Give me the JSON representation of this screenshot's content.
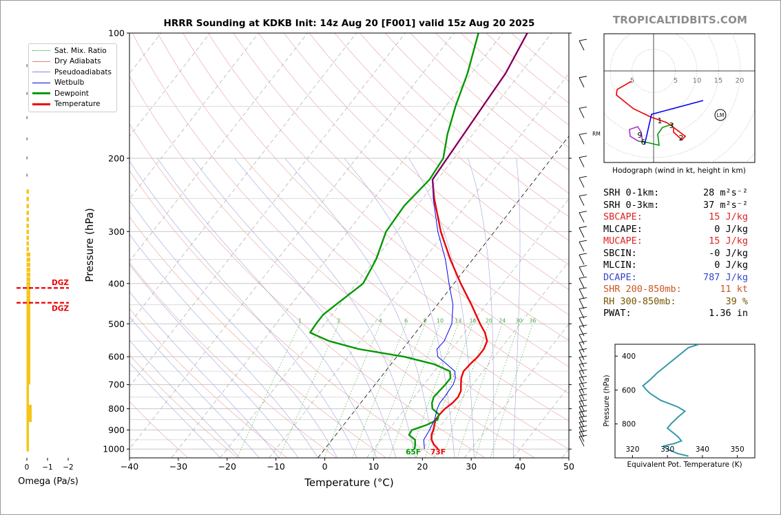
{
  "brand": "TROPICALTIDBITS.COM",
  "chart_data": [
    {
      "type": "line",
      "title": "HRRR Sounding at KDKB Init: 14z Aug 20 [F001] valid 15z Aug 20 2025",
      "xlabel": "Temperature (°C)",
      "ylabel": "Pressure (hPa)",
      "xlim": [
        -40,
        50
      ],
      "ylim": [
        1050,
        100
      ],
      "y_scale": "log",
      "x_ticks": [
        -40,
        -30,
        -20,
        -10,
        0,
        10,
        20,
        30,
        40,
        50
      ],
      "x_tick_labels": [
        "−40",
        "−30",
        "−20",
        "−10",
        "0",
        "10",
        "20",
        "30",
        "40",
        "50"
      ],
      "y_ticks": [
        100,
        200,
        300,
        400,
        500,
        600,
        700,
        800,
        900,
        1000
      ],
      "legend": {
        "position": "top-left",
        "entries": [
          {
            "label": "Sat. Mix. Ratio",
            "color": "#2ca02c",
            "style": "dotted"
          },
          {
            "label": "Dry Adiabats",
            "color": "#e08080",
            "style": "solid"
          },
          {
            "label": "Pseudoadiabats",
            "color": "#8888cc",
            "style": "solid"
          },
          {
            "label": "Wetbulb",
            "color": "#0000ee",
            "style": "solid"
          },
          {
            "label": "Dewpoint",
            "color": "#009900",
            "style": "solid"
          },
          {
            "label": "Temperature",
            "color": "#ee0000",
            "style": "solid"
          }
        ]
      },
      "mixing_ratio_labels": [
        "1",
        "2",
        "4",
        "6",
        "8",
        "10",
        "13",
        "16",
        "20",
        "24",
        "30",
        "36"
      ],
      "surface_labels": {
        "dewpoint": "65F",
        "temperature": "73F"
      },
      "series": [
        {
          "name": "Temperature",
          "color": "#ee0000",
          "points": [
            [
              1000,
              23.2
            ],
            [
              975,
              21.6
            ],
            [
              950,
              20.4
            ],
            [
              925,
              19.6
            ],
            [
              900,
              19.2
            ],
            [
              875,
              18.6
            ],
            [
              850,
              18.0
            ],
            [
              825,
              18.0
            ],
            [
              800,
              18.2
            ],
            [
              775,
              18.8
            ],
            [
              750,
              19.0
            ],
            [
              725,
              18.6
            ],
            [
              700,
              17.6
            ],
            [
              675,
              16.6
            ],
            [
              650,
              16.0
            ],
            [
              625,
              16.2
            ],
            [
              600,
              16.6
            ],
            [
              575,
              16.6
            ],
            [
              550,
              16.0
            ],
            [
              525,
              14.2
            ],
            [
              500,
              11.8
            ],
            [
              450,
              7.0
            ],
            [
              400,
              1.4
            ],
            [
              350,
              -4.6
            ],
            [
              300,
              -11.0
            ],
            [
              250,
              -17.6
            ],
            [
              225,
              -21.0
            ],
            [
              200,
              -21.4
            ],
            [
              150,
              -22.4
            ],
            [
              125,
              -23.0
            ],
            [
              100,
              -25.0
            ]
          ]
        },
        {
          "name": "Dewpoint",
          "color": "#009900",
          "points": [
            [
              1000,
              18.4
            ],
            [
              975,
              17.8
            ],
            [
              950,
              17.0
            ],
            [
              925,
              15.0
            ],
            [
              900,
              14.8
            ],
            [
              875,
              17.0
            ],
            [
              850,
              18.4
            ],
            [
              825,
              17.8
            ],
            [
              800,
              15.6
            ],
            [
              775,
              14.6
            ],
            [
              750,
              14.0
            ],
            [
              725,
              14.2
            ],
            [
              700,
              14.4
            ],
            [
              675,
              14.4
            ],
            [
              650,
              13.2
            ],
            [
              625,
              8.8
            ],
            [
              600,
              1.6
            ],
            [
              575,
              -9.0
            ],
            [
              550,
              -16.4
            ],
            [
              525,
              -21.6
            ],
            [
              500,
              -21.8
            ],
            [
              475,
              -21.8
            ],
            [
              450,
              -20.8
            ],
            [
              400,
              -18.6
            ],
            [
              350,
              -19.8
            ],
            [
              300,
              -22.2
            ],
            [
              260,
              -22.6
            ],
            [
              225,
              -21.6
            ],
            [
              200,
              -22.2
            ],
            [
              175,
              -25.2
            ],
            [
              150,
              -28.0
            ],
            [
              125,
              -30.8
            ],
            [
              100,
              -35.0
            ]
          ]
        },
        {
          "name": "Wetbulb",
          "color": "#0000ee",
          "points": [
            [
              1000,
              20.4
            ],
            [
              950,
              18.8
            ],
            [
              925,
              18.6
            ],
            [
              900,
              18.4
            ],
            [
              850,
              17.8
            ],
            [
              800,
              16.6
            ],
            [
              775,
              16.2
            ],
            [
              750,
              16.2
            ],
            [
              700,
              16.0
            ],
            [
              675,
              15.4
            ],
            [
              650,
              14.2
            ],
            [
              625,
              11.4
            ],
            [
              600,
              8.4
            ],
            [
              575,
              7.0
            ],
            [
              550,
              7.2
            ],
            [
              500,
              6.0
            ],
            [
              450,
              3.2
            ],
            [
              400,
              -1.0
            ],
            [
              350,
              -5.6
            ],
            [
              300,
              -11.6
            ],
            [
              250,
              -17.8
            ],
            [
              225,
              -21.0
            ],
            [
              200,
              -21.4
            ],
            [
              150,
              -22.4
            ],
            [
              125,
              -23.0
            ],
            [
              100,
              -25.0
            ]
          ]
        }
      ],
      "dgz_labels": [
        "DGZ",
        "DGZ"
      ],
      "wind_barbs_panel": "right"
    },
    {
      "type": "bar",
      "orientation": "horizontal",
      "xlabel": "Omega (Pa/s)",
      "x_tick_labels": [
        "0",
        "−1",
        "−2"
      ],
      "note_values": "small bars along pressure levels, mostly near 0"
    },
    {
      "type": "line",
      "title": "Hodograph (wind in kt, height in km)",
      "ring_labels": [
        "5",
        "5",
        "10",
        "15",
        "20"
      ],
      "height_labels": [
        "1",
        "3",
        "2",
        "9",
        "6"
      ],
      "markers": [
        "LM",
        "RM"
      ]
    },
    {
      "type": "line",
      "xlabel": "Equivalent Pot. Temperature (K)",
      "ylabel": "Pressure (hPa)",
      "x_ticks": [
        320,
        330,
        340,
        350
      ],
      "y_ticks": [
        400,
        600,
        800
      ],
      "xlim": [
        315,
        355
      ],
      "ylim": [
        1000,
        330
      ],
      "series": [
        {
          "name": "theta_e",
          "color": "#3399aa",
          "points": [
            [
              990,
              336.0
            ],
            [
              975,
              333.0
            ],
            [
              950,
              330.0
            ],
            [
              930,
              329.0
            ],
            [
              915,
              332.0
            ],
            [
              900,
              334.0
            ],
            [
              875,
              333.0
            ],
            [
              825,
              330.0
            ],
            [
              800,
              331.0
            ],
            [
              760,
              333.0
            ],
            [
              725,
              335.0
            ],
            [
              700,
              333.0
            ],
            [
              660,
              328.0
            ],
            [
              620,
              325.0
            ],
            [
              600,
              324.0
            ],
            [
              575,
              323.0
            ],
            [
              540,
              325.0
            ],
            [
              500,
              327.0
            ],
            [
              450,
              330.0
            ],
            [
              400,
              333.0
            ],
            [
              350,
              336.0
            ],
            [
              330,
              339.0
            ]
          ]
        }
      ]
    }
  ],
  "indices": [
    {
      "label": "SRH 0-1km:",
      "value": "28 m²s⁻²",
      "color": "#000000"
    },
    {
      "label": "SRH 0-3km:",
      "value": "37 m²s⁻²",
      "color": "#000000"
    },
    {
      "label": "SBCAPE:",
      "value": "15 J/kg",
      "color": "#dd2222"
    },
    {
      "label": "MLCAPE:",
      "value": "0 J/kg",
      "color": "#000000"
    },
    {
      "label": "MUCAPE:",
      "value": "15 J/kg",
      "color": "#dd2222"
    },
    {
      "label": "SBCIN:",
      "value": "-0 J/kg",
      "color": "#000000"
    },
    {
      "label": "MLCIN:",
      "value": "0 J/kg",
      "color": "#000000"
    },
    {
      "label": "DCAPE:",
      "value": "787 J/kg",
      "color": "#3344cc"
    },
    {
      "label": "SHR 200-850mb:",
      "value": "11 kt",
      "color": "#cc5522"
    },
    {
      "label": "RH 300-850mb:",
      "value": "39 %",
      "color": "#775500"
    },
    {
      "label": "PWAT:",
      "value": "1.36 in",
      "color": "#000000"
    }
  ]
}
